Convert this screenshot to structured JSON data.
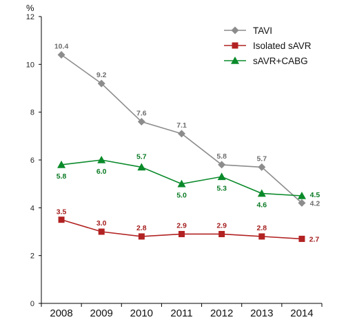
{
  "chart_data": {
    "type": "line",
    "y_unit": "%",
    "categories": [
      "2008",
      "2009",
      "2010",
      "2011",
      "2012",
      "2013",
      "2014"
    ],
    "ylim": [
      0,
      12
    ],
    "yticks": [
      0,
      2,
      4,
      6,
      8,
      10,
      12
    ],
    "grid": false,
    "legend_position": "top-right",
    "series": [
      {
        "name": "TAVI",
        "marker": "diamond",
        "color": "#8c8c8c",
        "label_color": "#6e6e6e",
        "values": [
          10.4,
          9.2,
          7.6,
          7.1,
          5.8,
          5.7,
          4.2
        ],
        "labels": [
          "10.4",
          "9.2",
          "7.6",
          "7.1",
          "5.8",
          "5.7",
          "4.2"
        ]
      },
      {
        "name": "Isolated sAVR",
        "marker": "square",
        "color": "#b22222",
        "label_color": "#a51e1e",
        "values": [
          3.5,
          3.0,
          2.8,
          2.9,
          2.9,
          2.8,
          2.7
        ],
        "labels": [
          "3.5",
          "3.0",
          "2.8",
          "2.9",
          "2.9",
          "2.8",
          "2.7"
        ]
      },
      {
        "name": "sAVR+CABG",
        "marker": "triangle",
        "color": "#0a8a2a",
        "label_color": "#0a7a24",
        "values": [
          5.8,
          6.0,
          5.7,
          5.0,
          5.3,
          4.6,
          4.5
        ],
        "labels": [
          "5.8",
          "6.0",
          "5.7",
          "5.0",
          "5.3",
          "4.6",
          "4.5"
        ]
      }
    ]
  }
}
